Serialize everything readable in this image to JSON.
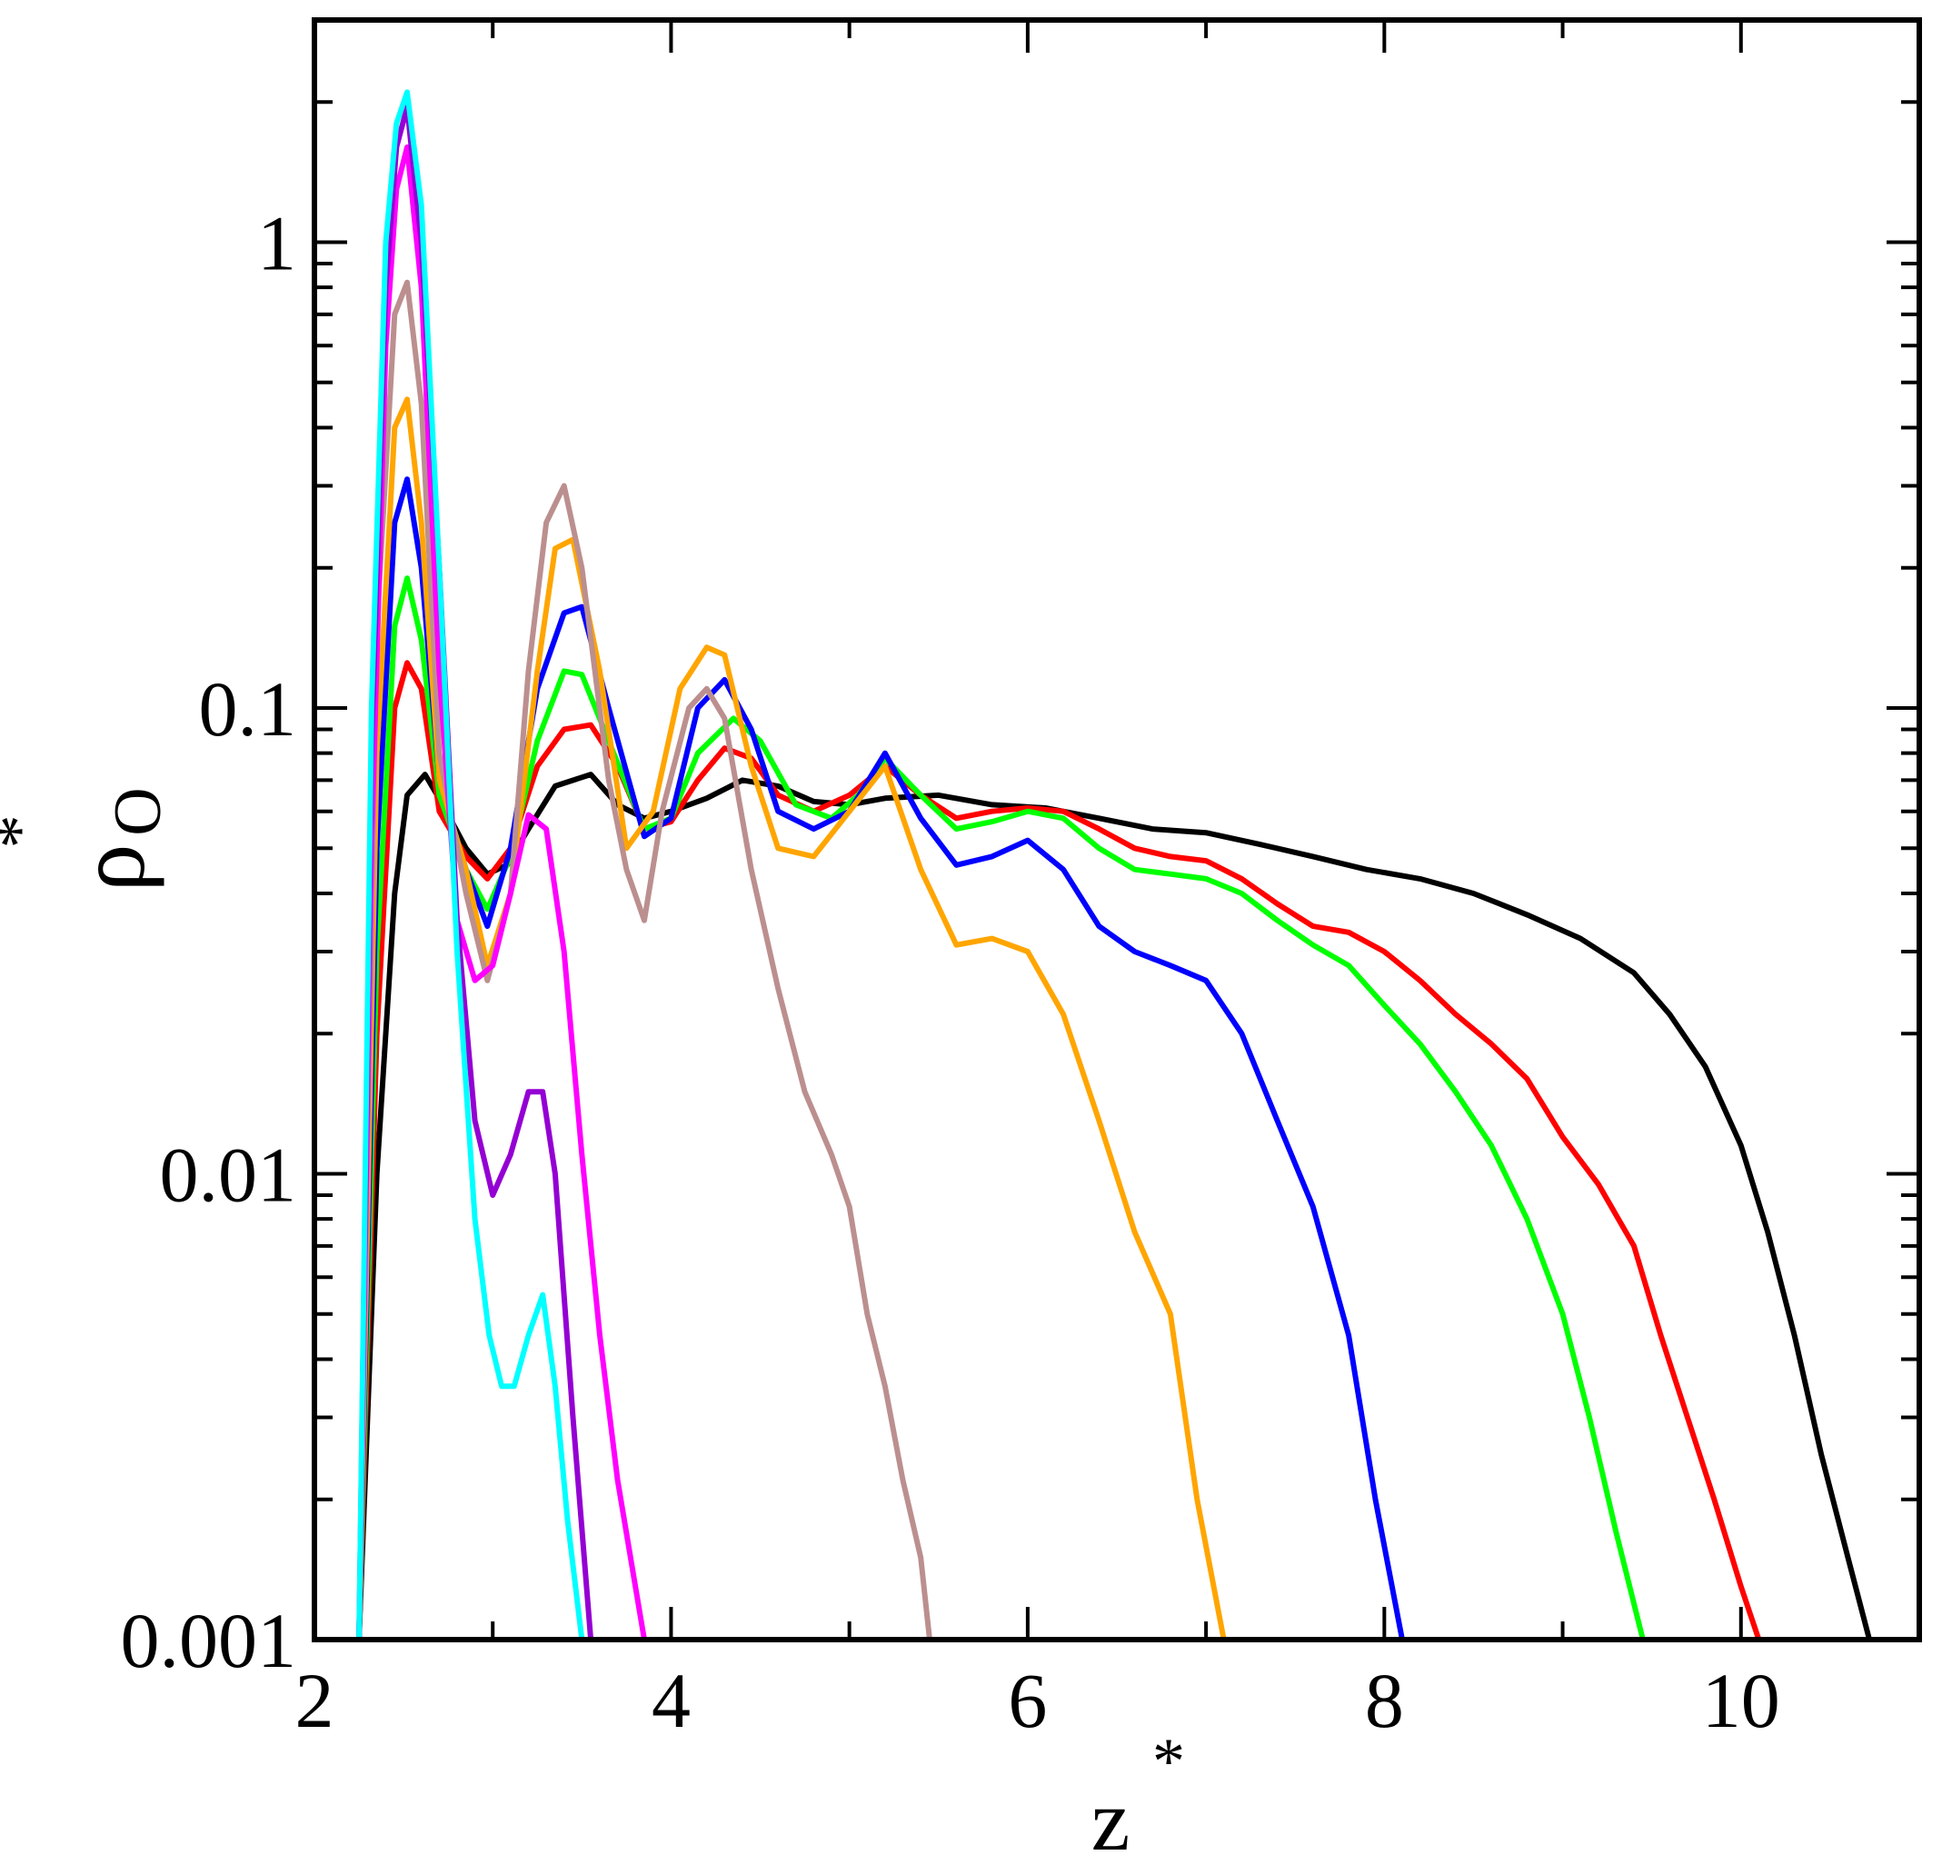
{
  "chart_data": {
    "type": "line",
    "title": "",
    "xlabel": "z",
    "xlabel_superscript": "*",
    "ylabel": "ρ",
    "ylabel_subscript": "O",
    "ylabel_superscript": "*",
    "xlim": [
      2,
      11
    ],
    "ylim": [
      0.001,
      3
    ],
    "yscale": "log",
    "grid": false,
    "legend": "none",
    "x_ticks": [
      2,
      4,
      6,
      8,
      10
    ],
    "x_tick_labels": [
      "2",
      "4",
      "6",
      "8",
      "10"
    ],
    "y_ticks": [
      0.001,
      0.01,
      0.1,
      1
    ],
    "y_tick_labels": [
      "0.001",
      "0.01",
      "0.1",
      "1"
    ],
    "series": [
      {
        "color": "#000000",
        "x": [
          2.25,
          2.35,
          2.45,
          2.52,
          2.62,
          2.72,
          2.85,
          2.97,
          3.08,
          3.2,
          3.35,
          3.55,
          3.7,
          3.85,
          4.0,
          4.2,
          4.4,
          4.6,
          4.8,
          5.0,
          5.2,
          5.5,
          5.8,
          6.1,
          6.4,
          6.7,
          7.0,
          7.3,
          7.6,
          7.9,
          8.2,
          8.5,
          8.8,
          9.1,
          9.4,
          9.6,
          9.8,
          10.0,
          10.15,
          10.3,
          10.45,
          10.6,
          10.72
        ],
        "y": [
          0.001,
          0.01,
          0.04,
          0.065,
          0.072,
          0.062,
          0.05,
          0.044,
          0.046,
          0.055,
          0.068,
          0.072,
          0.062,
          0.058,
          0.06,
          0.064,
          0.07,
          0.068,
          0.063,
          0.062,
          0.064,
          0.065,
          0.062,
          0.061,
          0.058,
          0.055,
          0.054,
          0.051,
          0.048,
          0.045,
          0.043,
          0.04,
          0.036,
          0.032,
          0.027,
          0.022,
          0.017,
          0.0115,
          0.0075,
          0.0045,
          0.0025,
          0.0015,
          0.001
        ]
      },
      {
        "color": "#ff0000",
        "x": [
          2.25,
          2.35,
          2.45,
          2.52,
          2.6,
          2.7,
          2.85,
          2.97,
          3.1,
          3.25,
          3.4,
          3.55,
          3.7,
          3.85,
          4.0,
          4.15,
          4.3,
          4.45,
          4.6,
          4.8,
          5.0,
          5.2,
          5.4,
          5.6,
          5.8,
          6.0,
          6.2,
          6.4,
          6.6,
          6.8,
          7.0,
          7.2,
          7.4,
          7.6,
          7.8,
          8.0,
          8.2,
          8.4,
          8.6,
          8.8,
          9.0,
          9.2,
          9.4,
          9.55,
          9.7,
          9.85,
          10.0,
          10.1
        ],
        "y": [
          0.001,
          0.02,
          0.1,
          0.125,
          0.11,
          0.06,
          0.048,
          0.043,
          0.05,
          0.075,
          0.09,
          0.092,
          0.075,
          0.055,
          0.057,
          0.07,
          0.082,
          0.078,
          0.065,
          0.06,
          0.065,
          0.075,
          0.065,
          0.058,
          0.06,
          0.061,
          0.06,
          0.055,
          0.05,
          0.048,
          0.047,
          0.043,
          0.038,
          0.034,
          0.033,
          0.03,
          0.026,
          0.022,
          0.019,
          0.016,
          0.012,
          0.0095,
          0.007,
          0.0045,
          0.003,
          0.002,
          0.0013,
          0.001
        ]
      },
      {
        "color": "#00ff00",
        "x": [
          2.25,
          2.35,
          2.45,
          2.52,
          2.6,
          2.7,
          2.85,
          2.97,
          3.1,
          3.25,
          3.4,
          3.5,
          3.65,
          3.85,
          4.0,
          4.15,
          4.35,
          4.5,
          4.7,
          4.9,
          5.05,
          5.2,
          5.4,
          5.6,
          5.8,
          6.0,
          6.2,
          6.4,
          6.6,
          6.8,
          7.0,
          7.2,
          7.4,
          7.6,
          7.8,
          8.0,
          8.2,
          8.4,
          8.6,
          8.8,
          9.0,
          9.15,
          9.3,
          9.45
        ],
        "y": [
          0.001,
          0.03,
          0.15,
          0.19,
          0.14,
          0.065,
          0.045,
          0.037,
          0.048,
          0.085,
          0.12,
          0.118,
          0.085,
          0.055,
          0.058,
          0.08,
          0.095,
          0.085,
          0.062,
          0.058,
          0.065,
          0.078,
          0.065,
          0.055,
          0.057,
          0.06,
          0.058,
          0.05,
          0.045,
          0.044,
          0.043,
          0.04,
          0.035,
          0.031,
          0.028,
          0.023,
          0.019,
          0.015,
          0.0115,
          0.008,
          0.005,
          0.003,
          0.0017,
          0.001
        ]
      },
      {
        "color": "#0000ff",
        "x": [
          2.25,
          2.35,
          2.45,
          2.52,
          2.6,
          2.7,
          2.85,
          2.97,
          3.1,
          3.25,
          3.4,
          3.5,
          3.65,
          3.85,
          4.0,
          4.15,
          4.3,
          4.45,
          4.6,
          4.8,
          5.0,
          5.2,
          5.4,
          5.6,
          5.8,
          6.0,
          6.2,
          6.4,
          6.6,
          6.8,
          7.0,
          7.2,
          7.4,
          7.6,
          7.8,
          7.95,
          8.1
        ],
        "y": [
          0.001,
          0.05,
          0.25,
          0.31,
          0.2,
          0.07,
          0.045,
          0.034,
          0.05,
          0.11,
          0.16,
          0.165,
          0.1,
          0.053,
          0.058,
          0.1,
          0.115,
          0.09,
          0.06,
          0.055,
          0.06,
          0.08,
          0.058,
          0.046,
          0.048,
          0.052,
          0.045,
          0.034,
          0.03,
          0.028,
          0.026,
          0.02,
          0.013,
          0.0085,
          0.0045,
          0.002,
          0.001
        ]
      },
      {
        "color": "#ffa500",
        "x": [
          2.25,
          2.35,
          2.45,
          2.52,
          2.6,
          2.7,
          2.85,
          2.97,
          3.1,
          3.25,
          3.35,
          3.45,
          3.6,
          3.75,
          3.9,
          4.05,
          4.2,
          4.3,
          4.45,
          4.6,
          4.8,
          5.0,
          5.2,
          5.4,
          5.6,
          5.8,
          6.0,
          6.2,
          6.4,
          6.6,
          6.8,
          6.95,
          7.1
        ],
        "y": [
          0.001,
          0.08,
          0.4,
          0.46,
          0.25,
          0.07,
          0.045,
          0.028,
          0.04,
          0.12,
          0.22,
          0.23,
          0.12,
          0.05,
          0.06,
          0.11,
          0.135,
          0.13,
          0.075,
          0.05,
          0.048,
          0.06,
          0.075,
          0.045,
          0.031,
          0.032,
          0.03,
          0.022,
          0.013,
          0.0075,
          0.005,
          0.002,
          0.001
        ]
      },
      {
        "color": "#bc8f8f",
        "x": [
          2.25,
          2.35,
          2.45,
          2.52,
          2.6,
          2.7,
          2.85,
          2.97,
          3.1,
          3.2,
          3.3,
          3.4,
          3.5,
          3.65,
          3.75,
          3.85,
          3.95,
          4.1,
          4.2,
          4.3,
          4.45,
          4.6,
          4.75,
          4.9,
          5.0,
          5.1,
          5.2,
          5.3,
          5.4,
          5.45
        ],
        "y": [
          0.001,
          0.15,
          0.7,
          0.82,
          0.45,
          0.08,
          0.04,
          0.026,
          0.04,
          0.12,
          0.25,
          0.3,
          0.2,
          0.07,
          0.045,
          0.035,
          0.06,
          0.1,
          0.11,
          0.095,
          0.045,
          0.025,
          0.015,
          0.011,
          0.0085,
          0.005,
          0.0035,
          0.0022,
          0.0015,
          0.001
        ]
      },
      {
        "color": "#ff00ff",
        "x": [
          2.25,
          2.32,
          2.4,
          2.46,
          2.52,
          2.6,
          2.7,
          2.8,
          2.9,
          3.0,
          3.1,
          3.2,
          3.3,
          3.4,
          3.5,
          3.6,
          3.7,
          3.8,
          3.85
        ],
        "y": [
          0.001,
          0.05,
          0.6,
          1.3,
          1.6,
          0.8,
          0.12,
          0.035,
          0.026,
          0.028,
          0.04,
          0.059,
          0.055,
          0.03,
          0.011,
          0.0045,
          0.0022,
          0.0013,
          0.001
        ]
      },
      {
        "color": "#9400d3",
        "x": [
          2.25,
          2.32,
          2.4,
          2.46,
          2.52,
          2.6,
          2.7,
          2.8,
          2.9,
          3.0,
          3.1,
          3.2,
          3.28,
          3.35,
          3.45,
          3.55
        ],
        "y": [
          0.001,
          0.08,
          0.8,
          1.6,
          1.95,
          1.0,
          0.2,
          0.035,
          0.013,
          0.009,
          0.011,
          0.015,
          0.015,
          0.01,
          0.003,
          0.001
        ]
      },
      {
        "color": "#00ffff",
        "x": [
          2.25,
          2.32,
          2.4,
          2.46,
          2.52,
          2.6,
          2.7,
          2.8,
          2.9,
          2.98,
          3.05,
          3.12,
          3.2,
          3.28,
          3.35,
          3.42,
          3.5
        ],
        "y": [
          0.001,
          0.1,
          1.0,
          1.8,
          2.1,
          1.2,
          0.2,
          0.03,
          0.008,
          0.0045,
          0.0035,
          0.0035,
          0.0045,
          0.0055,
          0.0035,
          0.0018,
          0.001
        ]
      }
    ]
  }
}
